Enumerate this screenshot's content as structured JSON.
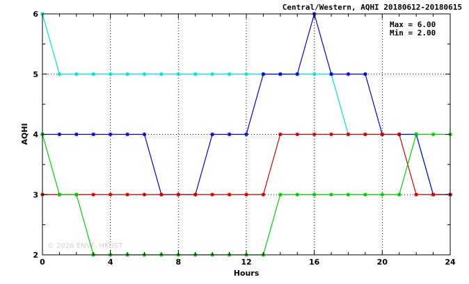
{
  "chart_data": {
    "type": "line",
    "title": "Central/Western, AQHI 20180612-20180615",
    "xlabel": "Hours",
    "ylabel": "AQHI",
    "xlim": [
      0,
      24
    ],
    "ylim": [
      2,
      6
    ],
    "xticks": [
      0,
      4,
      8,
      12,
      16,
      20,
      24
    ],
    "yticks": [
      2,
      3,
      4,
      5,
      6
    ],
    "grid": "dotted",
    "annotations": {
      "max": "Max = 6.00",
      "min": "Min = 2.00"
    },
    "watermark": "© 2026 ENVF, HKUST",
    "x": [
      0,
      1,
      2,
      3,
      4,
      5,
      6,
      7,
      8,
      9,
      10,
      11,
      12,
      13,
      14,
      15,
      16,
      17,
      18,
      19,
      20,
      21,
      22,
      23,
      24
    ],
    "series": [
      {
        "color": "#00e0e0",
        "values": [
          6,
          5,
          5,
          5,
          5,
          5,
          5,
          5,
          5,
          5,
          5,
          5,
          5,
          5,
          5,
          5,
          5,
          5,
          4,
          4,
          4,
          4,
          4,
          3,
          3
        ]
      },
      {
        "color": "#0000cc",
        "values": [
          4,
          4,
          4,
          4,
          4,
          4,
          4,
          3,
          3,
          3,
          4,
          4,
          4,
          5,
          5,
          5,
          6,
          5,
          5,
          5,
          4,
          4,
          4,
          3,
          3
        ]
      },
      {
        "color": "#cc0000",
        "values": [
          3,
          3,
          3,
          3,
          3,
          3,
          3,
          3,
          3,
          3,
          3,
          3,
          3,
          3,
          4,
          4,
          4,
          4,
          4,
          4,
          4,
          4,
          3,
          3,
          3
        ]
      },
      {
        "color": "#00cc00",
        "values": [
          4,
          3,
          3,
          2,
          2,
          2,
          2,
          2,
          2,
          2,
          2,
          2,
          2,
          2,
          3,
          3,
          3,
          3,
          3,
          3,
          3,
          3,
          4,
          4,
          4
        ]
      }
    ]
  }
}
